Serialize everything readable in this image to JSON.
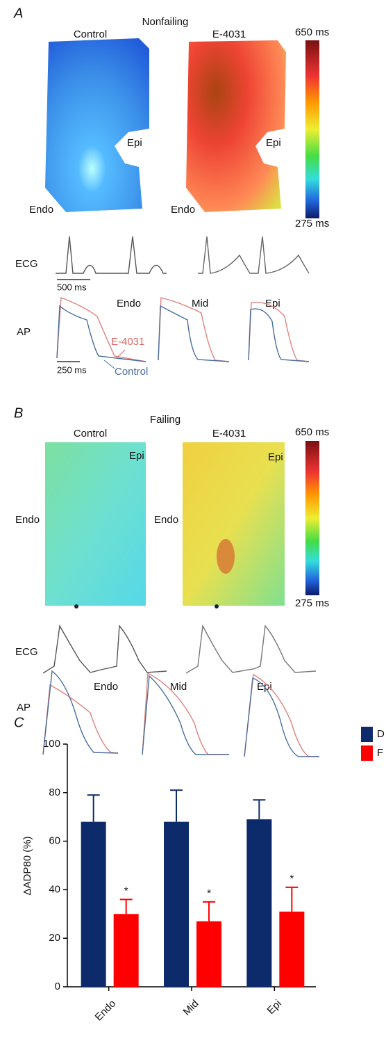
{
  "panel_a": {
    "label": "A",
    "title": "Nonfailing",
    "maps": [
      {
        "title": "Control",
        "labels": [
          "Epi",
          "Endo"
        ]
      },
      {
        "title": "E-4031",
        "labels": [
          "Epi",
          "Endo"
        ]
      }
    ],
    "colorbar": {
      "max": "650 ms",
      "min": "275 ms"
    },
    "ecg": {
      "label": "ECG",
      "scale": "500 ms"
    },
    "ap": {
      "label": "AP",
      "regions": [
        "Endo",
        "Mid",
        "Epi"
      ],
      "legend": [
        "E-4031",
        "Control"
      ],
      "scale": "250 ms"
    }
  },
  "panel_b": {
    "label": "B",
    "title": "Failing",
    "maps": [
      {
        "title": "Control",
        "labels": [
          "Epi",
          "Endo"
        ]
      },
      {
        "title": "E-4031",
        "labels": [
          "Epi",
          "Endo"
        ]
      }
    ],
    "colorbar": {
      "max": "650 ms",
      "min": "275 ms"
    },
    "ecg": {
      "label": "ECG"
    },
    "ap": {
      "label": "AP",
      "regions": [
        "Endo",
        "Mid",
        "Epi"
      ]
    }
  },
  "chart_data": {
    "type": "bar",
    "panel_label": "C",
    "ylabel": "ΔADP80 (%)",
    "categories": [
      "Endo",
      "Mid",
      "Epi"
    ],
    "series": [
      {
        "name": "D",
        "color": "#0d2a6b",
        "values": [
          68,
          68,
          69
        ],
        "errors": [
          11,
          13,
          8
        ]
      },
      {
        "name": "F",
        "color": "#ff0000",
        "values": [
          30,
          27,
          31
        ],
        "errors": [
          6,
          8,
          10
        ]
      }
    ],
    "significance": [
      "*",
      "*",
      "*"
    ],
    "ylim": [
      0,
      100
    ],
    "yticks": [
      0,
      20,
      40,
      60,
      80,
      100
    ]
  }
}
